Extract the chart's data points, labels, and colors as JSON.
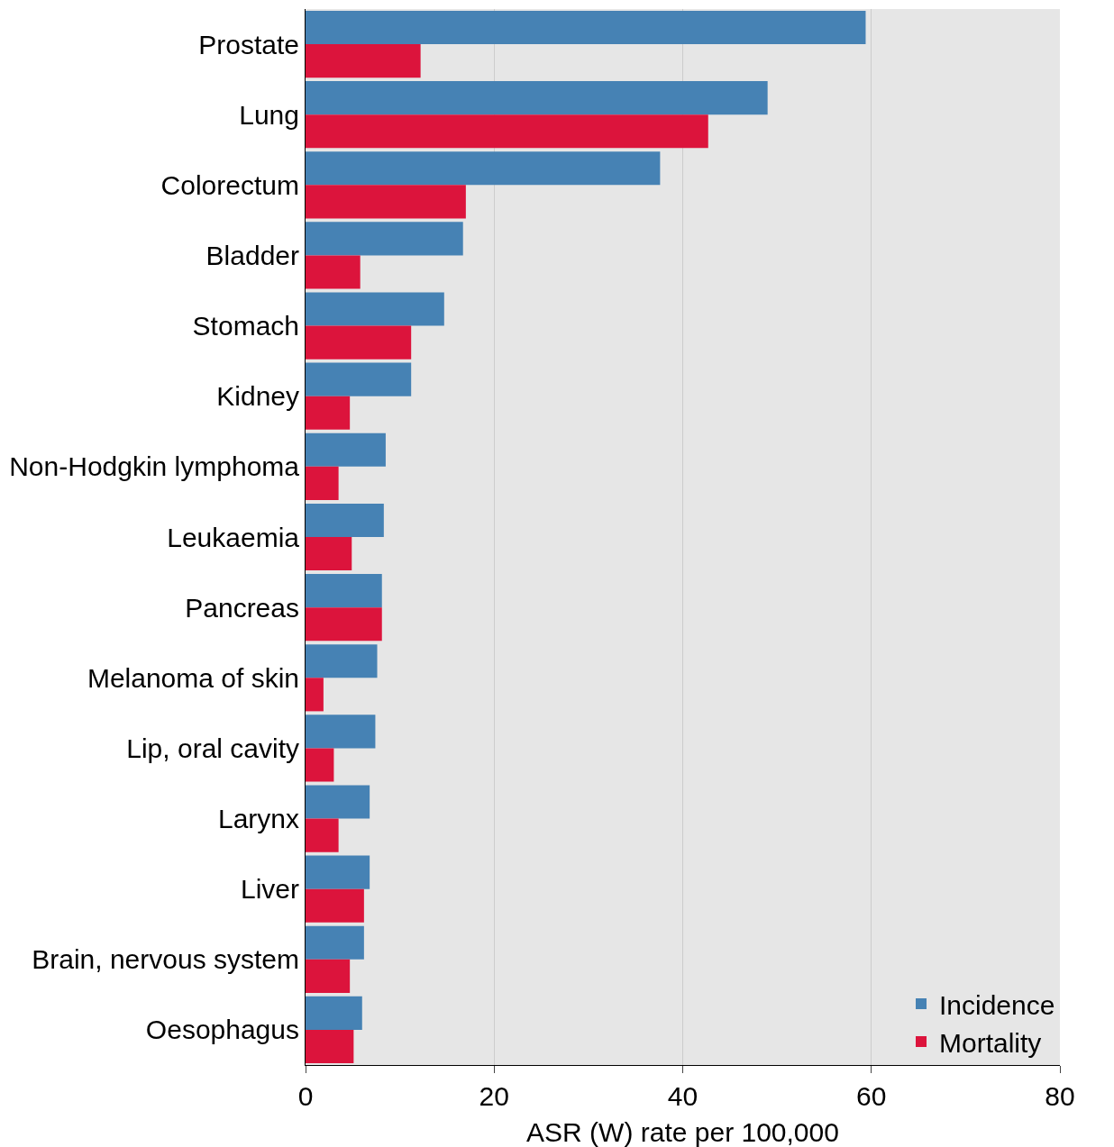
{
  "chart_data": {
    "type": "bar",
    "orientation": "horizontal",
    "categories": [
      "Prostate",
      "Lung",
      "Colorectum",
      "Bladder",
      "Stomach",
      "Kidney",
      "Non-Hodgkin lymphoma",
      "Leukaemia",
      "Pancreas",
      "Melanoma of skin",
      "Lip, oral cavity",
      "Larynx",
      "Liver",
      "Brain, nervous system",
      "Oesophagus"
    ],
    "series": [
      {
        "name": "Incidence",
        "color": "#4682b4",
        "values": [
          59.4,
          49.0,
          37.6,
          16.7,
          14.7,
          11.2,
          8.5,
          8.3,
          8.1,
          7.6,
          7.4,
          6.8,
          6.8,
          6.2,
          6.0
        ]
      },
      {
        "name": "Mortality",
        "color": "#dc143c",
        "values": [
          12.2,
          42.7,
          17.0,
          5.8,
          11.2,
          4.7,
          3.5,
          4.9,
          8.1,
          1.9,
          3.0,
          3.5,
          6.2,
          4.7,
          5.1
        ]
      }
    ],
    "xlabel": "ASR (W) rate per 100,000",
    "xlim": [
      0,
      80
    ],
    "xticks": [
      0,
      20,
      40,
      60,
      80
    ],
    "grid": "x",
    "legend": "bottom right"
  }
}
